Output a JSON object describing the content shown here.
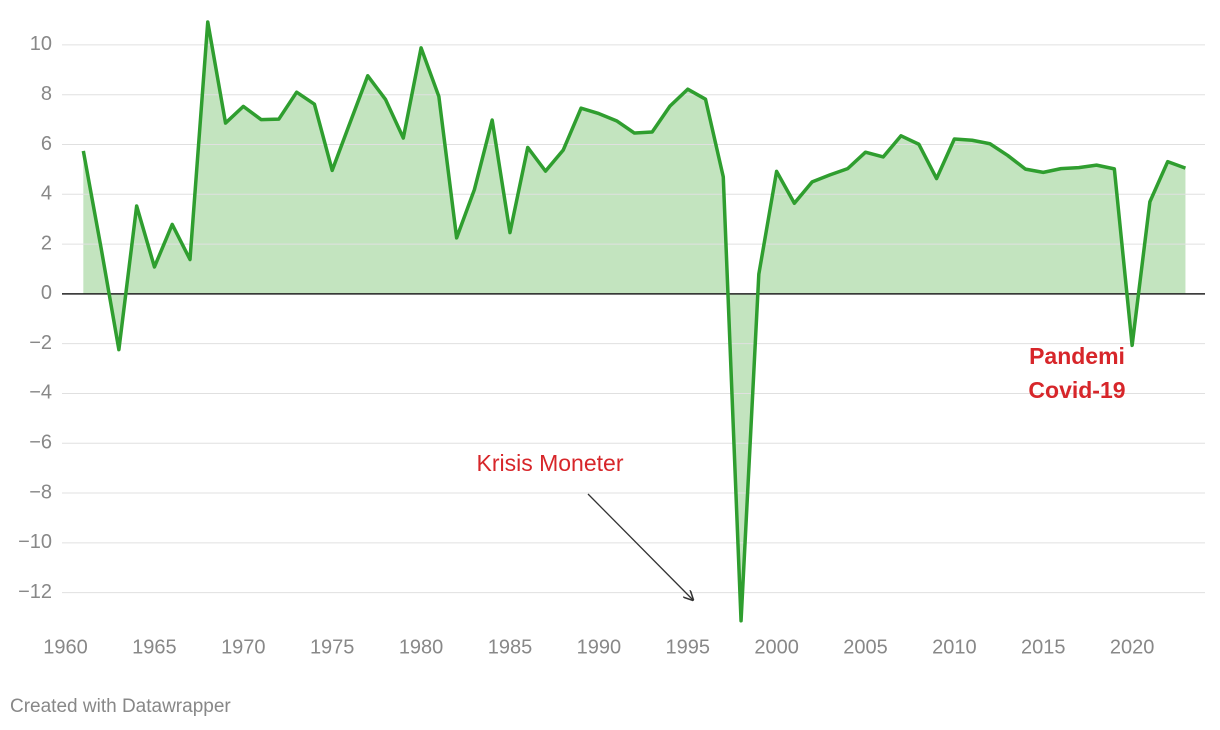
{
  "chart_data": {
    "type": "area",
    "x": [
      1961,
      1962,
      1963,
      1964,
      1965,
      1966,
      1967,
      1968,
      1969,
      1970,
      1971,
      1972,
      1973,
      1974,
      1975,
      1976,
      1977,
      1978,
      1979,
      1980,
      1981,
      1982,
      1983,
      1984,
      1985,
      1986,
      1987,
      1988,
      1989,
      1990,
      1991,
      1992,
      1993,
      1994,
      1995,
      1996,
      1997,
      1998,
      1999,
      2000,
      2001,
      2002,
      2003,
      2004,
      2005,
      2006,
      2007,
      2008,
      2009,
      2010,
      2011,
      2012,
      2013,
      2014,
      2015,
      2016,
      2017,
      2018,
      2019,
      2020,
      2021,
      2022,
      2023
    ],
    "values": [
      5.74,
      1.84,
      -2.24,
      3.53,
      1.08,
      2.79,
      1.38,
      10.92,
      6.86,
      7.53,
      7.0,
      7.02,
      8.1,
      7.62,
      4.96,
      6.87,
      8.76,
      7.81,
      6.26,
      9.88,
      7.93,
      2.25,
      4.19,
      6.98,
      2.46,
      5.88,
      4.93,
      5.78,
      7.46,
      7.24,
      6.95,
      6.46,
      6.5,
      7.54,
      8.22,
      7.82,
      4.7,
      -13.13,
      0.79,
      4.92,
      3.64,
      4.5,
      4.78,
      5.03,
      5.69,
      5.5,
      6.35,
      6.01,
      4.63,
      6.22,
      6.17,
      6.03,
      5.56,
      5.01,
      4.88,
      5.03,
      5.07,
      5.17,
      5.02,
      -2.07,
      3.7,
      5.31,
      5.05
    ],
    "color": "#2f9e2f",
    "fill_color": "#c3e4bf",
    "xlim": [
      1959.8,
      2024.1
    ],
    "xticks": [
      1960,
      1965,
      1970,
      1975,
      1980,
      1985,
      1990,
      1995,
      2000,
      2005,
      2010,
      2015,
      2020
    ],
    "ylim": [
      -13.3,
      11
    ],
    "yticks": [
      10,
      8,
      6,
      4,
      2,
      0,
      {
        "value": -2,
        "label": "−2"
      },
      {
        "value": -4,
        "label": "−4"
      },
      {
        "value": -6,
        "label": "−6"
      },
      {
        "value": -8,
        "label": "−8"
      },
      {
        "value": -10,
        "label": "−10"
      },
      {
        "value": -12,
        "label": "−12"
      }
    ],
    "grid": true,
    "annotations": [
      {
        "text": "Krisis Moneter"
      },
      {
        "lines": [
          "Pandemi",
          "Covid-19"
        ]
      }
    ],
    "footer": "Created with Datawrapper"
  }
}
